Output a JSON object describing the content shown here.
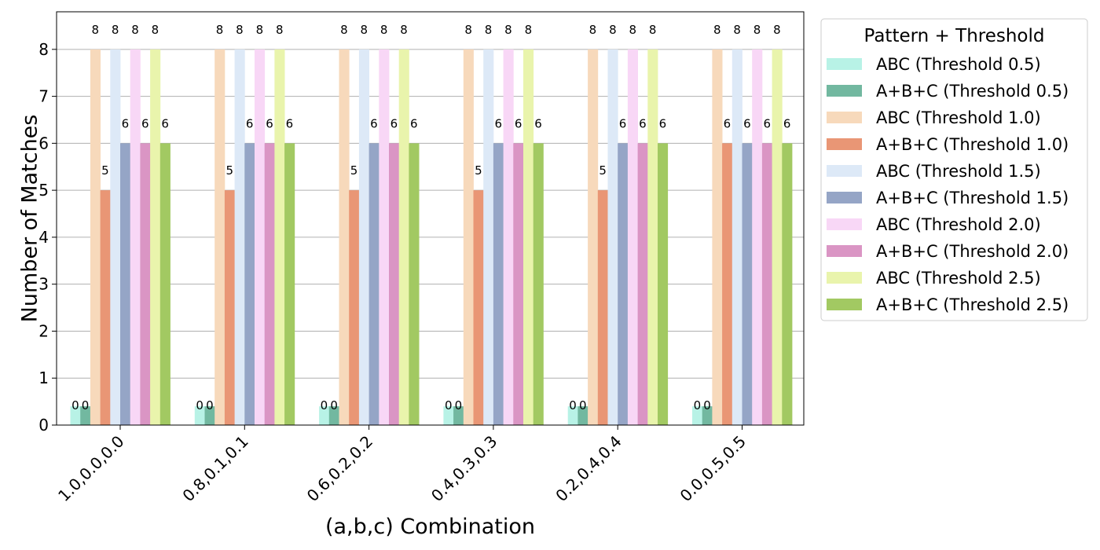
{
  "chart_data": {
    "type": "bar",
    "xlabel": "(a,b,c) Combination",
    "ylabel": "Number of Matches",
    "categories": [
      "1.0,0.0,0.0",
      "0.8,0.1,0.1",
      "0.6,0.2,0.2",
      "0.4,0.3,0.3",
      "0.2,0.4,0.4",
      "0.0,0.5,0.5"
    ],
    "ylim": [
      0,
      8.8
    ],
    "yticks": [
      0,
      1,
      2,
      3,
      4,
      5,
      6,
      7,
      8
    ],
    "grid": "horizontal",
    "legend_title": "Pattern + Threshold",
    "legend_position": "outside-right",
    "zero_bar_stub_value": 0.4,
    "series": [
      {
        "name": "ABC (Threshold 0.5)",
        "color": "#b8f2e6",
        "values": [
          0,
          0,
          0,
          0,
          0,
          0
        ]
      },
      {
        "name": "A+B+C (Threshold 0.5)",
        "color": "#72b8a0",
        "values": [
          0,
          0,
          0,
          0,
          0,
          0
        ]
      },
      {
        "name": "ABC (Threshold 1.0)",
        "color": "#f7d9bb",
        "values": [
          8,
          8,
          8,
          8,
          8,
          8
        ]
      },
      {
        "name": "A+B+C (Threshold 1.0)",
        "color": "#e99675",
        "values": [
          5,
          5,
          5,
          5,
          5,
          6
        ]
      },
      {
        "name": "ABC (Threshold 1.5)",
        "color": "#dde9f7",
        "values": [
          8,
          8,
          8,
          8,
          8,
          8
        ]
      },
      {
        "name": "A+B+C (Threshold 1.5)",
        "color": "#95a5c6",
        "values": [
          6,
          6,
          6,
          6,
          6,
          6
        ]
      },
      {
        "name": "ABC (Threshold 2.0)",
        "color": "#f8d7f6",
        "values": [
          8,
          8,
          8,
          8,
          8,
          8
        ]
      },
      {
        "name": "A+B+C (Threshold 2.0)",
        "color": "#da95c4",
        "values": [
          6,
          6,
          6,
          6,
          6,
          6
        ]
      },
      {
        "name": "ABC (Threshold 2.5)",
        "color": "#e9f4ac",
        "values": [
          8,
          8,
          8,
          8,
          8,
          8
        ]
      },
      {
        "name": "A+B+C (Threshold 2.5)",
        "color": "#a2c962",
        "values": [
          6,
          6,
          6,
          6,
          6,
          6
        ]
      }
    ]
  }
}
